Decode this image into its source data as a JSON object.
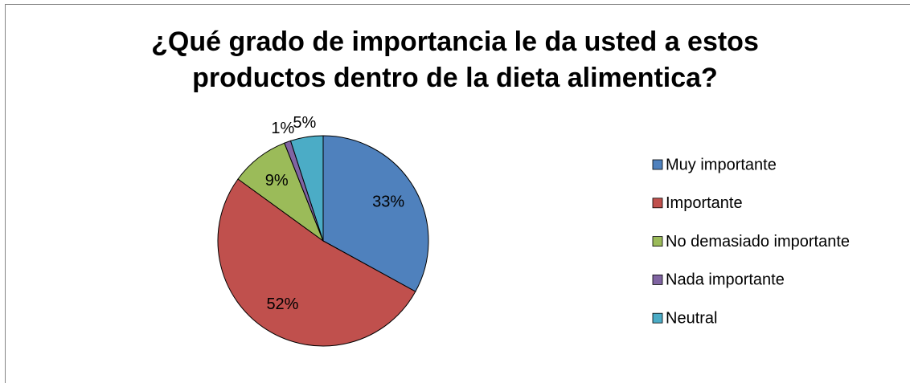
{
  "chart_data": {
    "type": "pie",
    "title": "¿Qué grado de importancia le da usted a estos productos dentro de la dieta alimentica?",
    "categories": [
      "Muy importante",
      "Importante",
      "No demasiado importante",
      "Nada importante",
      "Neutral"
    ],
    "values": [
      33,
      52,
      9,
      1,
      5
    ],
    "value_labels": [
      "33%",
      "52%",
      "9%",
      "1%",
      "5%"
    ],
    "colors": [
      "#4f81bd",
      "#c0504d",
      "#9bbb59",
      "#8064a2",
      "#4bacc6"
    ],
    "legend": "right"
  }
}
